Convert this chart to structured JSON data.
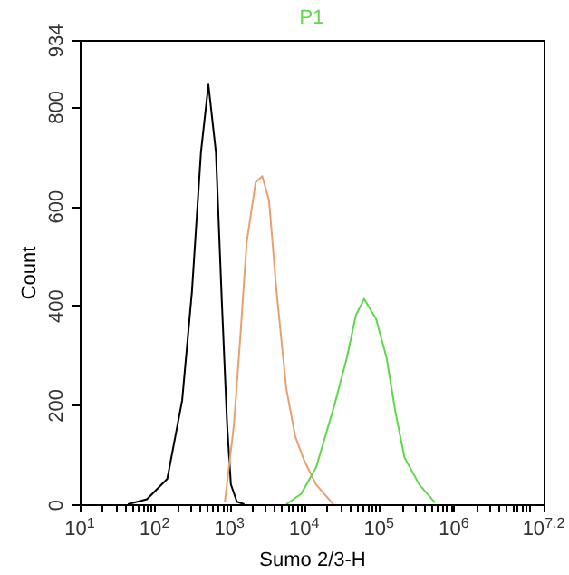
{
  "chart_data": {
    "type": "line",
    "title": "P1",
    "xlabel": "Sumo 2/3-H",
    "ylabel": "Count",
    "log": "x",
    "grid": false,
    "marker": "none",
    "line_style": "solid",
    "xlim": [
      10,
      15848932
    ],
    "xticks": [
      {
        "value": 10,
        "label": "10$^{1}$"
      },
      {
        "value": 20,
        "label": null
      },
      {
        "value": 30,
        "label": null
      },
      {
        "value": 40,
        "label": null
      },
      {
        "value": 50,
        "label": null
      },
      {
        "value": 60,
        "label": null
      },
      {
        "value": 70,
        "label": null
      },
      {
        "value": 80,
        "label": null
      },
      {
        "value": 90,
        "label": null
      },
      {
        "value": 100,
        "label": "10$^{2}$"
      },
      {
        "value": 200,
        "label": null
      },
      {
        "value": 300,
        "label": null
      },
      {
        "value": 400,
        "label": null
      },
      {
        "value": 500,
        "label": null
      },
      {
        "value": 600,
        "label": null
      },
      {
        "value": 700,
        "label": null
      },
      {
        "value": 800,
        "label": null
      },
      {
        "value": 900,
        "label": null
      },
      {
        "value": 1000,
        "label": "10$^{3}$"
      },
      {
        "value": 2000,
        "label": null
      },
      {
        "value": 3000,
        "label": null
      },
      {
        "value": 4000,
        "label": null
      },
      {
        "value": 5000,
        "label": null
      },
      {
        "value": 6000,
        "label": null
      },
      {
        "value": 7000,
        "label": null
      },
      {
        "value": 8000,
        "label": null
      },
      {
        "value": 9000,
        "label": null
      },
      {
        "value": 10000,
        "label": "10$^{4}$"
      },
      {
        "value": 20000,
        "label": null
      },
      {
        "value": 30000,
        "label": null
      },
      {
        "value": 40000,
        "label": null
      },
      {
        "value": 50000,
        "label": null
      },
      {
        "value": 60000,
        "label": null
      },
      {
        "value": 70000,
        "label": null
      },
      {
        "value": 80000,
        "label": null
      },
      {
        "value": 90000,
        "label": null
      },
      {
        "value": 100000,
        "label": "10$^{5}$"
      },
      {
        "value": 200000,
        "label": null
      },
      {
        "value": 300000,
        "label": null
      },
      {
        "value": 400000,
        "label": null
      },
      {
        "value": 500000,
        "label": null
      },
      {
        "value": 600000,
        "label": null
      },
      {
        "value": 700000,
        "label": null
      },
      {
        "value": 800000,
        "label": null
      },
      {
        "value": 900000,
        "label": null
      },
      {
        "value": 1000000,
        "label": "10$^{6}$"
      },
      {
        "value": 2000000,
        "label": null
      },
      {
        "value": 3000000,
        "label": null
      },
      {
        "value": 4000000,
        "label": null
      },
      {
        "value": 5000000,
        "label": null
      },
      {
        "value": 6000000,
        "label": null
      },
      {
        "value": 7000000,
        "label": null
      },
      {
        "value": 8000000,
        "label": null
      },
      {
        "value": 9000000,
        "label": null
      },
      {
        "value": 10000000,
        "label": null
      },
      {
        "value": 15848932,
        "label": "10$^{7.2}$"
      }
    ],
    "ylim": [
      0,
      934
    ],
    "yticks": [
      0,
      200,
      400,
      600,
      800,
      934
    ],
    "series": [
      {
        "color": "#000000",
        "x": [
          44,
          79,
          148,
          234,
          316,
          417,
          525,
          661,
          794,
          933,
          1047,
          1259,
          1585
        ],
        "values": [
          0,
          10,
          51,
          209,
          428,
          708,
          844,
          708,
          405,
          160,
          40,
          5,
          0
        ]
      },
      {
        "color": "#e8a070",
        "x": [
          870,
          1150,
          1410,
          1700,
          2240,
          2750,
          3390,
          4270,
          5750,
          7590,
          10000,
          14500,
          24500
        ],
        "values": [
          5,
          160,
          343,
          526,
          647,
          660,
          611,
          428,
          234,
          136,
          88,
          39,
          0
        ]
      },
      {
        "color": "#5ed84a",
        "x": [
          5750,
          9120,
          14500,
          25100,
          37200,
          49000,
          63100,
          91200,
          126000,
          166000,
          219000,
          347000,
          562000
        ],
        "values": [
          0,
          21,
          75,
          197,
          295,
          380,
          413,
          373,
          295,
          185,
          94,
          39,
          3
        ]
      }
    ]
  }
}
